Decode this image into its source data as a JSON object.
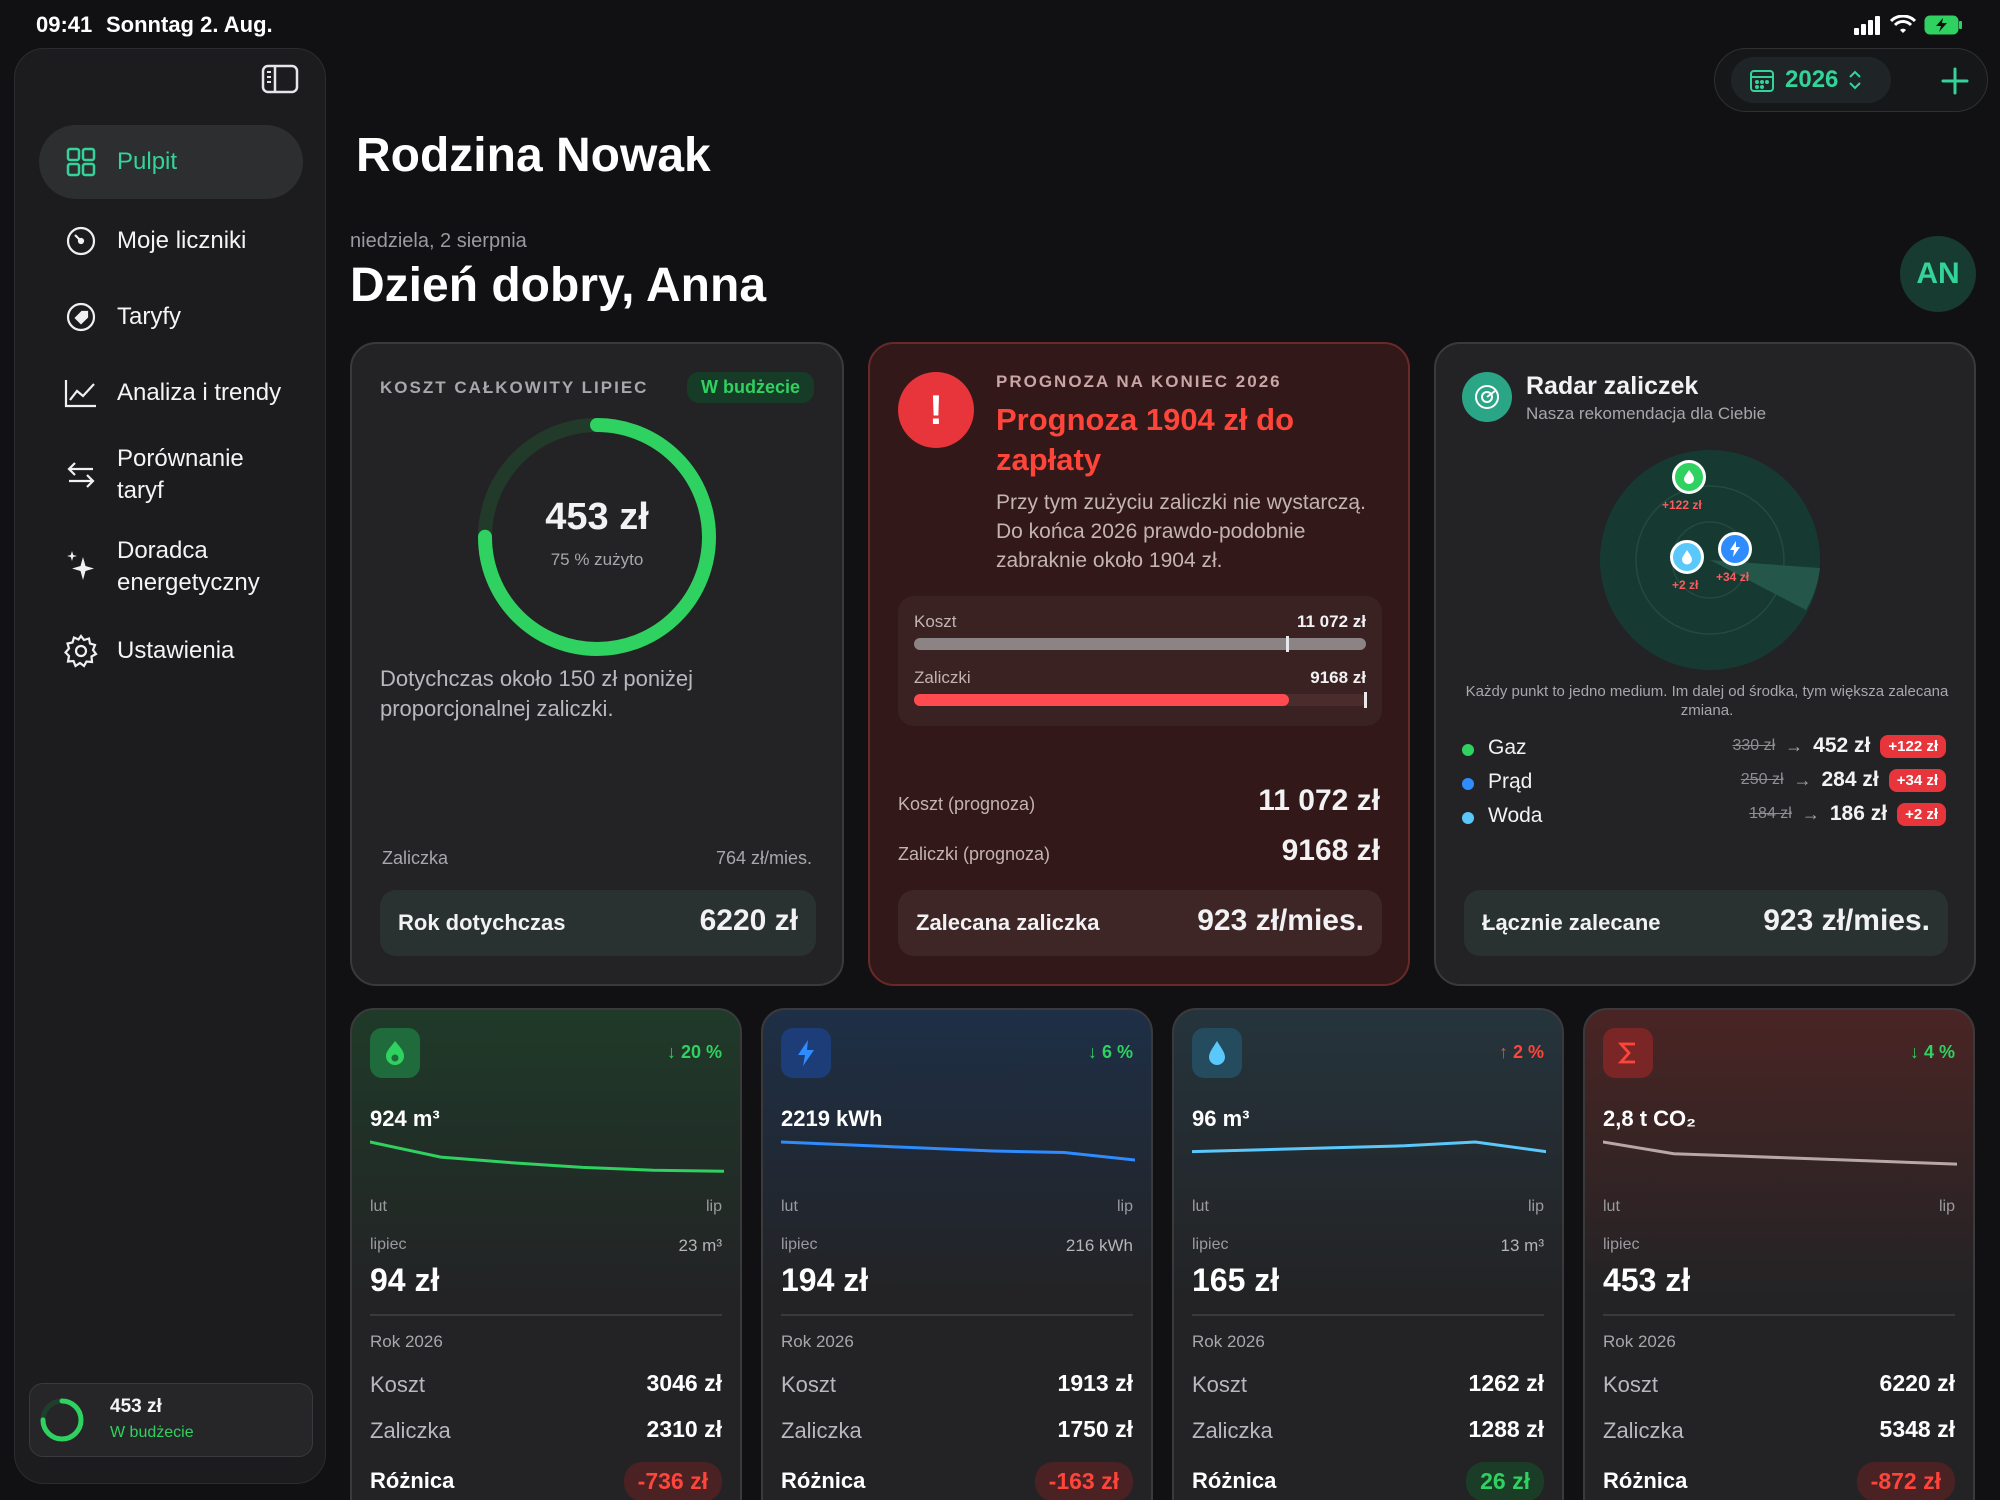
{
  "status": {
    "time": "09:41",
    "date": "Sonntag 2. Aug."
  },
  "sidebar": {
    "items": [
      {
        "label": "Pulpit",
        "icon": "grid-icon"
      },
      {
        "label": "Moje liczniki",
        "icon": "gauge-icon"
      },
      {
        "label": "Taryfy",
        "icon": "tag-icon"
      },
      {
        "label": "Analiza i trendy",
        "icon": "chart-line-icon"
      },
      {
        "label": "Porównanie taryf",
        "icon": "arrows-swap-icon"
      },
      {
        "label": "Doradca energetyczny",
        "icon": "sparkles-icon"
      },
      {
        "label": "Ustawienia",
        "icon": "gear-icon"
      }
    ],
    "mini": {
      "value": "453 zł",
      "status": "W budżecie",
      "progress": 0.75
    }
  },
  "topbar": {
    "year": "2026"
  },
  "header": {
    "family": "Rodzina Nowak",
    "date": "niedziela, 2 sierpnia",
    "greeting": "Dzień dobry, Anna",
    "avatar": "AN"
  },
  "card_cost": {
    "label": "KOSZT CAŁKOWITY LIPIEC",
    "badge": "W budżecie",
    "amount": "453 zł",
    "used": "75 % zużyto",
    "progress": 0.75,
    "note": "Dotychczas około 150 zł poniżej proporcjonalnej zaliczki.",
    "advance_label": "Zaliczka",
    "advance_value": "764 zł/mies.",
    "ytd_label": "Rok dotychczas",
    "ytd_value": "6220 zł"
  },
  "card_forecast": {
    "eyebrow": "PROGNOZA NA KONIEC 2026",
    "title": "Prognoza 1904 zł do zapłaty",
    "text": "Przy tym zużyciu zaliczki nie wystarczą. Do końca 2026 prawdo-podobnie zabraknie około 1904 zł.",
    "bar_cost_label": "Koszt",
    "bar_cost_value": "11 072 zł",
    "bar_adv_label": "Zaliczki",
    "bar_adv_value": "9168 zł",
    "bar_adv_fraction": 0.83,
    "cost_fc_label": "Koszt (prognoza)",
    "cost_fc_value": "11 072 zł",
    "adv_fc_label": "Zaliczki (prognoza)",
    "adv_fc_value": "9168 zł",
    "rec_label": "Zalecana zaliczka",
    "rec_value": "923 zł/mies."
  },
  "card_radar": {
    "title": "Radar zaliczek",
    "subtitle": "Nasza rekomendacja dla Ciebie",
    "points": [
      {
        "name": "gas-point",
        "label": "+122 zł"
      },
      {
        "name": "water-point",
        "label": "+2 zł"
      },
      {
        "name": "power-point",
        "label": "+34 zł"
      }
    ],
    "note": "Każdy punkt to jedno medium. Im dalej od środka, tym większa zalecana zmiana.",
    "rows": [
      {
        "name": "Gaz",
        "color": "#2fd160",
        "old": "330 zł",
        "new": "452 zł",
        "delta": "+122 zł"
      },
      {
        "name": "Prąd",
        "color": "#2f8cff",
        "old": "250 zł",
        "new": "284 zł",
        "delta": "+34 zł"
      },
      {
        "name": "Woda",
        "color": "#5ac8fa",
        "old": "184 zł",
        "new": "186 zł",
        "delta": "+2 zł"
      }
    ],
    "total_label": "Łącznie zalecane",
    "total_value": "923 zł/mies."
  },
  "utilities": [
    {
      "key": "gas",
      "trend": "↓ 20 %",
      "trend_color": "#2fd160",
      "total": "924 m³",
      "from": "lut",
      "to": "lip",
      "month": "lipiec",
      "month_usage": "23 m³",
      "month_cost": "94 zł",
      "year": "Rok 2026",
      "cost_label": "Koszt",
      "cost": "3046 zł",
      "adv_label": "Zaliczka",
      "adv": "2310 zł",
      "diff_label": "Różnica",
      "diff": "-736 zł",
      "diff_color": "#ff453a",
      "line_color": "#2fd160",
      "spark": [
        10,
        8.4,
        7.8,
        7.3,
        7.0,
        6.9
      ]
    },
    {
      "key": "power",
      "trend": "↓ 6 %",
      "trend_color": "#2fd160",
      "total": "2219 kWh",
      "from": "lut",
      "to": "lip",
      "month": "lipiec",
      "month_usage": "216 kWh",
      "month_cost": "194 zł",
      "year": "Rok 2026",
      "cost_label": "Koszt",
      "cost": "1913 zł",
      "adv_label": "Zaliczka",
      "adv": "1750 zł",
      "diff_label": "Różnica",
      "diff": "-163 zł",
      "diff_color": "#ff453a",
      "line_color": "#2f8cff",
      "spark": [
        10,
        9.8,
        9.6,
        9.4,
        9.3,
        8.8
      ]
    },
    {
      "key": "water",
      "trend": "↑ 2 %",
      "trend_color": "#ff453a",
      "total": "96 m³",
      "from": "lut",
      "to": "lip",
      "month": "lipiec",
      "month_usage": "13 m³",
      "month_cost": "165 zł",
      "year": "Rok 2026",
      "cost_label": "Koszt",
      "cost": "1262 zł",
      "adv_label": "Zaliczka",
      "adv": "1288 zł",
      "diff_label": "Różnica",
      "diff": "26 zł",
      "diff_color": "#2fd160",
      "line_color": "#5ac8fa",
      "spark": [
        9.5,
        9.6,
        9.7,
        9.8,
        10,
        9.5
      ]
    },
    {
      "key": "total",
      "trend": "↓ 4 %",
      "trend_color": "#2fd160",
      "total": "2,8 t CO₂",
      "from": "lut",
      "to": "lip",
      "month": "lipiec",
      "month_usage": "",
      "month_cost": "453 zł",
      "year": "Rok 2026",
      "cost_label": "Koszt",
      "cost": "6220 zł",
      "adv_label": "Zaliczka",
      "adv": "5348 zł",
      "diff_label": "Różnica",
      "diff": "-872 zł",
      "diff_color": "#ff453a",
      "line_color": "#b9a7a7",
      "spark": [
        10,
        9.1,
        8.9,
        8.7,
        8.5,
        8.3
      ]
    }
  ]
}
